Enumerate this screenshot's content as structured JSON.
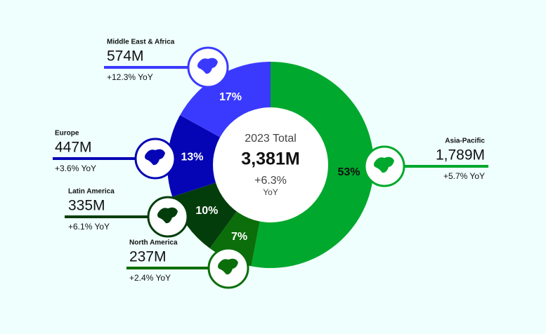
{
  "chart_data": {
    "type": "donut",
    "center": {
      "title": "2023 Total",
      "total": "3,381M",
      "change": "+6.3%",
      "change_unit": "YoY"
    },
    "categories": [
      "Asia-Pacific",
      "North America",
      "Latin America",
      "Europe",
      "Middle East & Africa"
    ],
    "values": [
      53,
      7,
      10,
      13,
      17
    ],
    "value_labels": [
      "53%",
      "7%",
      "10%",
      "13%",
      "17%"
    ],
    "colors": [
      "#00a82d",
      "#0b6e0b",
      "#033d0b",
      "#0505b5",
      "#3a3aff"
    ],
    "amounts": [
      "1,789M",
      "237M",
      "335M",
      "447M",
      "574M"
    ],
    "changes": [
      "+5.7% YoY",
      "+2.4% YoY",
      "+6.1% YoY",
      "+3.6% YoY",
      "+12.3% YoY"
    ]
  }
}
